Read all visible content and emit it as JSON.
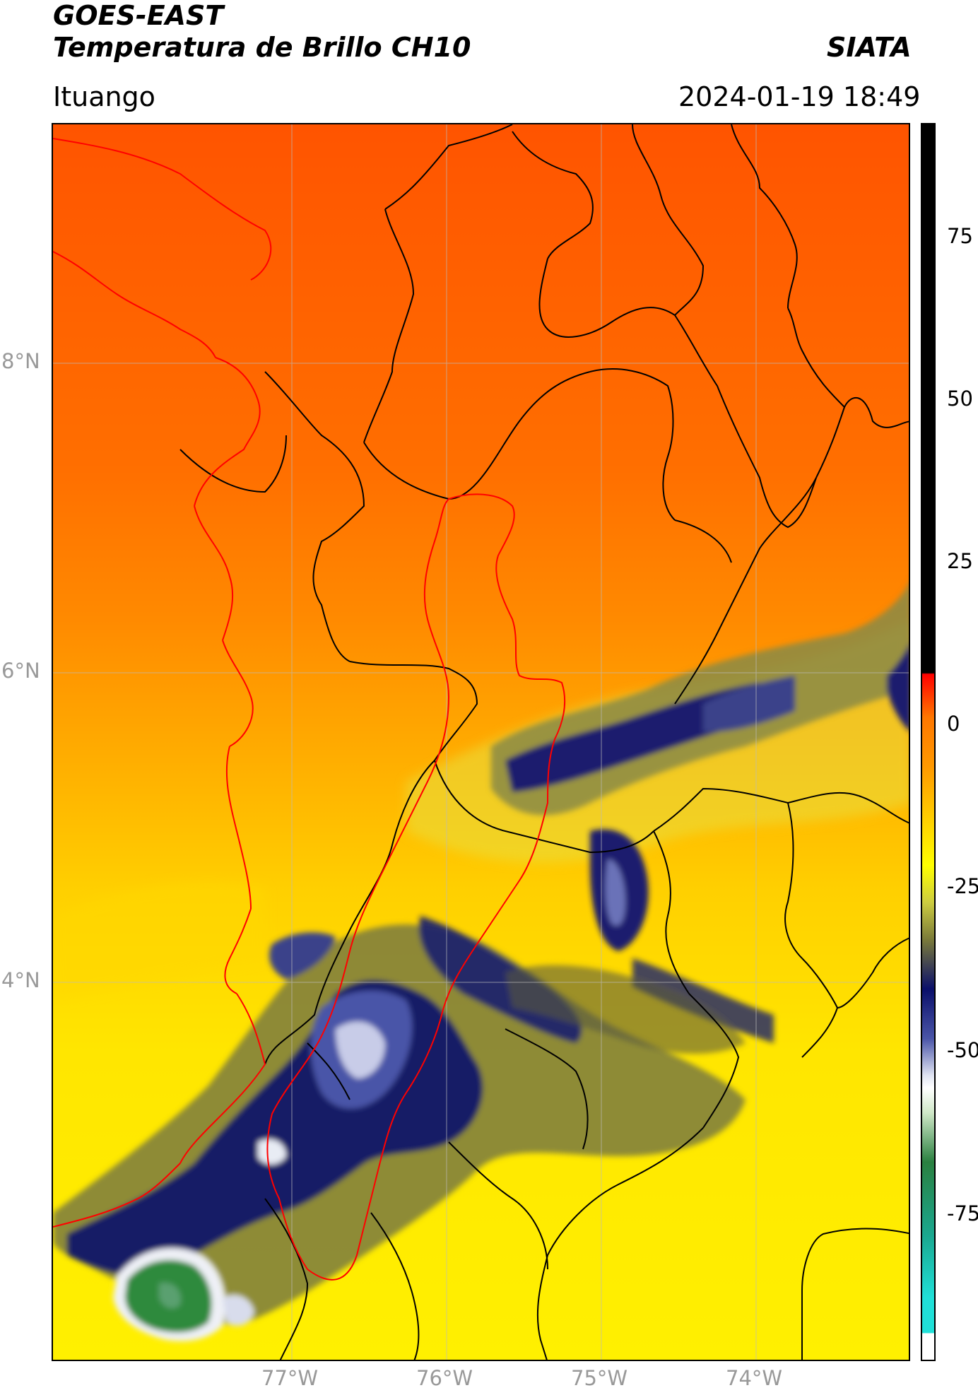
{
  "header": {
    "satellite": "GOES-EAST",
    "product": "Temperatura de Brillo CH10",
    "org": "SIATA",
    "region": "Ituango",
    "datetime": "2024-01-19 18:49"
  },
  "map": {
    "lat_labels": [
      "8°N",
      "6°N",
      "4°N"
    ],
    "lon_labels": [
      "77°W",
      "76°W",
      "75°W",
      "74°W"
    ],
    "colors": {
      "warm_top": "#ff5a00",
      "warm_mid": "#ff9a00",
      "warm_low": "#ffe600",
      "cloud_dark": "#1a1f6e",
      "cloud_mid": "#4a55a8",
      "cloud_light": "#c8cce8",
      "cold_core": "#2e8a3e",
      "border": "#000000",
      "basin": "#ff0000"
    }
  },
  "colorbar": {
    "labels": [
      "75",
      "50",
      "25",
      "0",
      "-25",
      "-50",
      "-75"
    ],
    "range": [
      -97,
      91
    ],
    "colors": {
      "black": "#000000",
      "red": "#ff0000",
      "orange": "#ff9900",
      "yellow": "#ffff00",
      "olive": "#7a7a3a",
      "navy": "#0a0f6a",
      "white": "#ffffff",
      "green": "#2a8040",
      "cyan": "#20e0d8"
    }
  }
}
